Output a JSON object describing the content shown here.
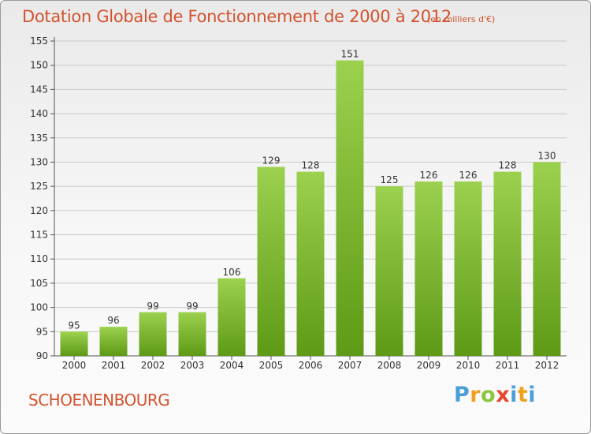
{
  "header": {
    "title": "Dotation Globale de Fonctionnement de 2000 à 2012",
    "unit": "(en milliers d'€)"
  },
  "footer": {
    "commune": "SCHOENENBOURG",
    "logo": "Proxiti"
  },
  "colors": {
    "title": "#d2532e",
    "bar_top": "#9bd14e",
    "bar_bottom": "#5e9a16",
    "grid": "#c8c8c8"
  },
  "chart_data": {
    "type": "bar",
    "title": "Dotation Globale de Fonctionnement de 2000 à 2012",
    "subtitle": "(en milliers d'€)",
    "categories": [
      "2000",
      "2001",
      "2002",
      "2003",
      "2004",
      "2005",
      "2006",
      "2007",
      "2008",
      "2009",
      "2010",
      "2011",
      "2012"
    ],
    "values": [
      95,
      96,
      99,
      99,
      106,
      129,
      128,
      151,
      125,
      126,
      126,
      128,
      130
    ],
    "ylim": [
      90,
      155
    ],
    "yticks": [
      90,
      95,
      100,
      105,
      110,
      115,
      120,
      125,
      130,
      135,
      140,
      145,
      150,
      155
    ],
    "grid": true,
    "data_labels": true
  }
}
